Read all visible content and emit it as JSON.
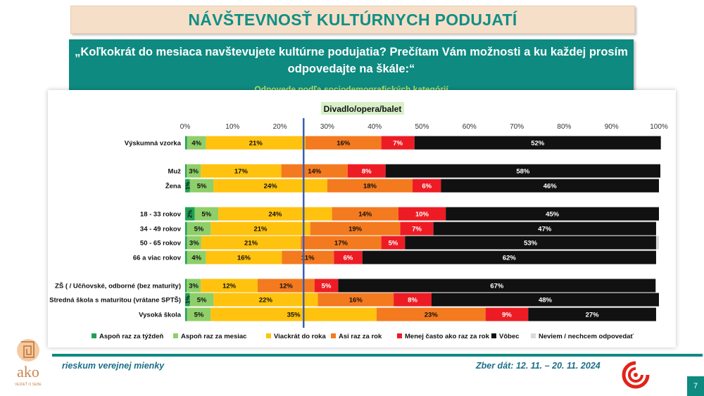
{
  "title": "NÁVŠTEVNOSŤ KULTÚRNYCH PODUJATÍ",
  "question": "„Koľkokrát do mesiaca navštevujete kultúrne podujatia? Prečítam Vám možnosti a ku každej prosím odpovedajte na škále:“",
  "subtitle": "Odpovede podľa sociodemografických kategórií",
  "footer": {
    "left": "rieskum verejnej mienky",
    "right": "Zber dát: 12. 11. – 20. 11. 2024",
    "page": "7",
    "logo_text": "ako",
    "logo_tagline": "VEDIEŤ O SEBE"
  },
  "colors": {
    "teal": "#0e8a80",
    "reference_line": "#3a5fb0"
  },
  "chart_data": {
    "type": "bar",
    "orientation": "horizontal",
    "stacked": true,
    "title": "Divadlo/opera/balet",
    "xlim": [
      0,
      100
    ],
    "x_ticks": [
      "0%",
      "10%",
      "20%",
      "30%",
      "40%",
      "50%",
      "60%",
      "70%",
      "80%",
      "90%",
      "100%"
    ],
    "reference_line_x": 25,
    "legend_position": "bottom",
    "categories": [
      "Výskumná vzorka",
      "Muž",
      "Žena",
      "18 - 33 rokov",
      "34 - 49 rokov",
      "50 - 65 rokov",
      "66 a viac rokov",
      "ZŠ ( / Učňovské, odborné (bez maturity)",
      "Stredná škola s maturitou (vrátane SPTŠ)",
      "Vysoká škola"
    ],
    "groups": [
      [
        0
      ],
      [
        1,
        2
      ],
      [
        3,
        4,
        5,
        6
      ],
      [
        7,
        8,
        9
      ]
    ],
    "series": [
      {
        "name": "Aspoň raz za týždeň",
        "color": "#1ea155",
        "values": [
          0.4,
          0.3,
          1,
          2,
          0.4,
          0.4,
          0.4,
          0.3,
          1,
          0.4
        ],
        "labels": [
          "",
          "",
          "1%",
          "2%",
          "",
          "",
          "",
          "",
          "1%",
          ""
        ]
      },
      {
        "name": "Aspoň raz za mesiac",
        "color": "#8fcf6a",
        "values": [
          4,
          3,
          5,
          5,
          5,
          3,
          4,
          3,
          5,
          5
        ],
        "labels": [
          "4%",
          "3%",
          "5%",
          "5%",
          "5%",
          "3%",
          "4%",
          "3%",
          "5%",
          "5%"
        ]
      },
      {
        "name": "Viackrát do roka",
        "color": "#ffc20e",
        "values": [
          21,
          17,
          24,
          24,
          21,
          21,
          16,
          12,
          22,
          35
        ],
        "labels": [
          "21%",
          "17%",
          "24%",
          "24%",
          "21%",
          "21%",
          "16%",
          "12%",
          "22%",
          "35%"
        ]
      },
      {
        "name": "Asi raz za rok",
        "color": "#f47a1f",
        "values": [
          16,
          14,
          18,
          14,
          19,
          17,
          11,
          12,
          16,
          23
        ],
        "labels": [
          "16%",
          "14%",
          "18%",
          "14%",
          "19%",
          "17%",
          "11%",
          "12%",
          "16%",
          "23%"
        ]
      },
      {
        "name": "Menej často ako raz za rok",
        "color": "#ed1c24",
        "values": [
          7,
          8,
          6,
          10,
          7,
          5,
          6,
          5,
          8,
          9
        ],
        "labels": [
          "7%",
          "8%",
          "6%",
          "10%",
          "7%",
          "5%",
          "6%",
          "5%",
          "8%",
          "9%"
        ]
      },
      {
        "name": "Vôbec",
        "color": "#111111",
        "values": [
          52,
          58,
          46,
          45,
          47,
          53,
          62,
          67,
          48,
          27
        ],
        "labels": [
          "52%",
          "58%",
          "46%",
          "45%",
          "47%",
          "53%",
          "62%",
          "67%",
          "48%",
          "27%"
        ]
      },
      {
        "name": "Neviem / nechcem odpovedať",
        "color": "#d9d9d9",
        "values": [
          0,
          0,
          0,
          0,
          0,
          0.6,
          0,
          0,
          0,
          0
        ],
        "labels": [
          "",
          "",
          "",
          "",
          "",
          "",
          "",
          "",
          "",
          ""
        ]
      }
    ]
  }
}
